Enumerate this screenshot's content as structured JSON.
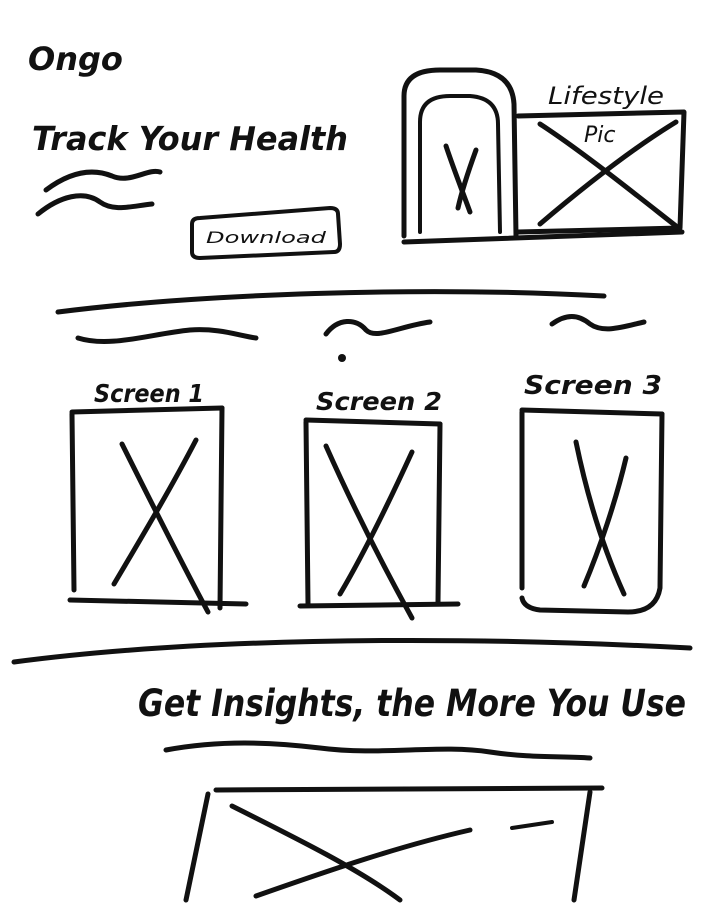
{
  "header": {
    "brand": "Ongo",
    "headline": "Track Your Health",
    "download_label": "Download"
  },
  "hero_images": {
    "phone_label": "",
    "lifestyle_label_line1": "Lifestyle",
    "lifestyle_label_line2": "Pic"
  },
  "screens": [
    {
      "label": "Screen 1"
    },
    {
      "label": "Screen 2"
    },
    {
      "label": "Screen 3"
    }
  ],
  "insights": {
    "headline": "Get Insights, the More You Use"
  },
  "colors": {
    "ink": "#111111",
    "paper": "#ffffff"
  }
}
